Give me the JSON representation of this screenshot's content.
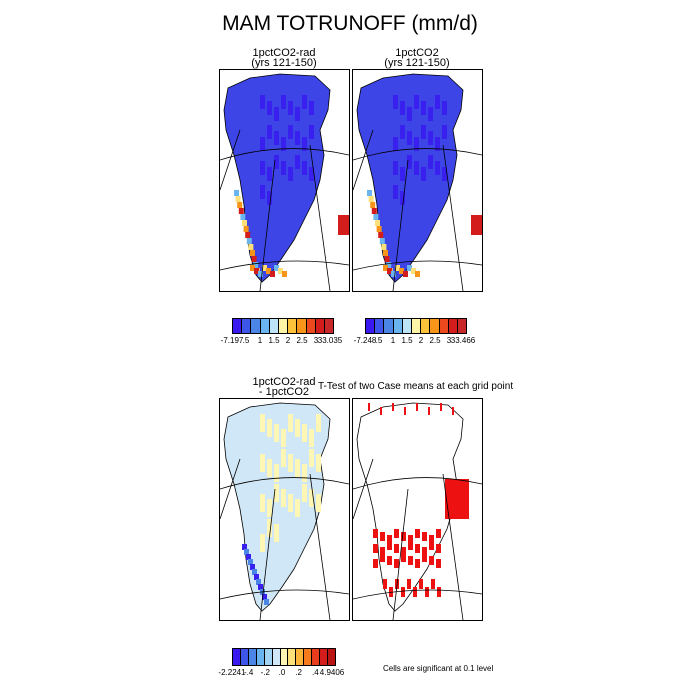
{
  "figure_title": "MAM TOTRUNOFF (mm/d)",
  "panels": {
    "top_left": {
      "title": "1pctCO2-rad\n(yrs 121-150)"
    },
    "top_right": {
      "title": "1pctCO2\n(yrs 121-150)"
    },
    "bottom_left": {
      "title": "1pctCO2-rad\n- 1pctCO2"
    },
    "bottom_right": {
      "title": "T-Test of two Case means at each grid point"
    }
  },
  "colorbars": {
    "top_left": {
      "colors": [
        "#3a18f0",
        "#3d55e8",
        "#4b86e6",
        "#6ab4ef",
        "#bde3f7",
        "#fdf4a8",
        "#fcc33a",
        "#f7951a",
        "#ec4a1e",
        "#d31c1c",
        "#c9282a"
      ],
      "labels": [
        "-7.197",
        ".5",
        "1",
        "1.5",
        "2",
        "2.5",
        "3",
        "33.035"
      ]
    },
    "top_right": {
      "colors": [
        "#3a18f0",
        "#3d55e8",
        "#4b86e6",
        "#6ab4ef",
        "#bde3f7",
        "#fdf4a8",
        "#fcc33a",
        "#f7951a",
        "#ec4a1e",
        "#d31c1c",
        "#c9282a"
      ],
      "labels": [
        "-7.248",
        ".5",
        "1",
        "1.5",
        "2",
        "2.5",
        "3",
        "33.466"
      ]
    },
    "bottom_left": {
      "colors": [
        "#3a18f0",
        "#3d55e8",
        "#4b86e6",
        "#6ab4ef",
        "#a3d3f2",
        "#cfe7f6",
        "#fdf6b4",
        "#fde07a",
        "#fcb33a",
        "#f77a1c",
        "#ea3d1e",
        "#d31c1c",
        "#b81414"
      ],
      "labels": [
        "-2.2241",
        "-.4",
        "-.2",
        ".0",
        ".2",
        ".4",
        "4.9406"
      ]
    }
  },
  "footnote": "Cells are significant at 0.1 level",
  "map_colors": {
    "land_dark": "#3d45e6",
    "land_mid": "#3a20ee",
    "coast_light": "#6ab4ef",
    "coast_yellow": "#fde07a",
    "coast_orange": "#f7951a",
    "coast_red": "#d31c1c",
    "diff_light": "#cfe7f6",
    "diff_yellow": "#fdf6b4",
    "diff_blue": "#4b86e6",
    "signif_red": "#ee1111"
  }
}
